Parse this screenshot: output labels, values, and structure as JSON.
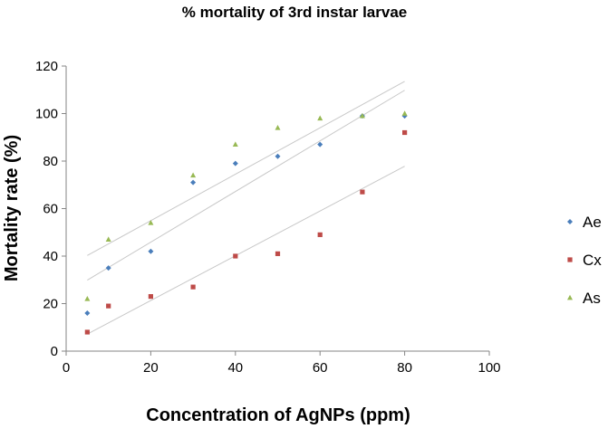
{
  "chart_data": {
    "type": "scatter",
    "title": "% mortality of 3rd instar larvae",
    "xlabel": "Concentration of AgNPs (ppm)",
    "ylabel": "Mortality rate (%)",
    "xlim": [
      0,
      100
    ],
    "ylim": [
      0,
      120
    ],
    "xticks": [
      0,
      20,
      40,
      60,
      80,
      100
    ],
    "yticks": [
      0,
      20,
      40,
      60,
      80,
      100,
      120
    ],
    "x_tick_labels": [
      "0",
      "20",
      "40",
      "60",
      "80",
      "100"
    ],
    "y_tick_labels": [
      "0",
      "20",
      "40",
      "60",
      "80",
      "100",
      "120"
    ],
    "grid": false,
    "legend_position": "right",
    "trendlines": "linear",
    "series": [
      {
        "name": "Ae",
        "color": "#4a7ebb",
        "marker": "diamond",
        "x": [
          5,
          10,
          20,
          30,
          40,
          50,
          60,
          70,
          80
        ],
        "y": [
          16,
          35,
          42,
          71,
          79,
          82,
          87,
          99,
          99
        ]
      },
      {
        "name": "Cx",
        "color": "#be4b48",
        "marker": "square",
        "x": [
          5,
          10,
          20,
          30,
          40,
          50,
          60,
          70,
          80
        ],
        "y": [
          8,
          19,
          23,
          27,
          40,
          41,
          49,
          67,
          92
        ]
      },
      {
        "name": "As",
        "color": "#98b954",
        "marker": "triangle",
        "x": [
          5,
          10,
          20,
          30,
          40,
          50,
          60,
          70,
          80
        ],
        "y": [
          22,
          47,
          54,
          74,
          87,
          94,
          98,
          99,
          100
        ]
      }
    ]
  }
}
